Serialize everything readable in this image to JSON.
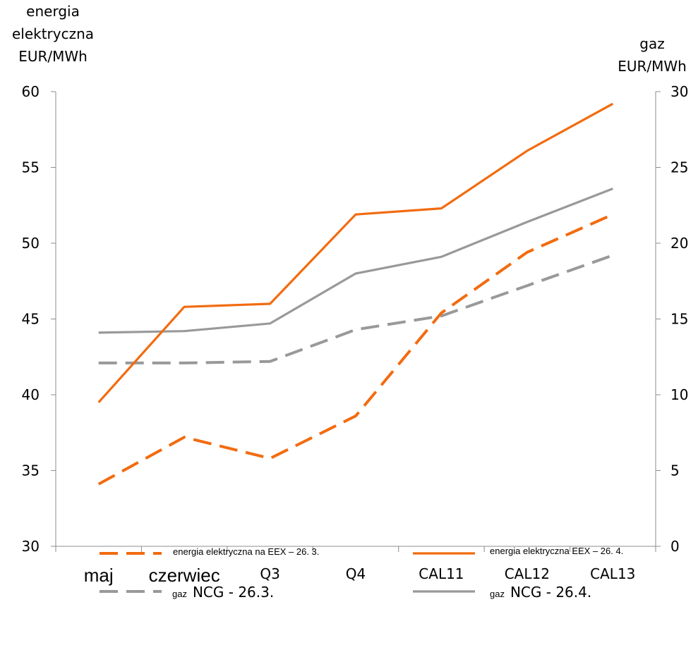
{
  "chart_data": {
    "type": "line",
    "left_axis": {
      "title_lines": [
        "energia",
        "elektryczna",
        "EUR/MWh"
      ],
      "range": [
        30,
        60
      ],
      "ticks": [
        "30",
        "35",
        "40",
        "45",
        "50",
        "55",
        "60"
      ]
    },
    "right_axis": {
      "title_lines": [
        "gaz",
        "EUR/MWh"
      ],
      "range": [
        0,
        30
      ],
      "ticks": [
        "0",
        "5",
        "10",
        "15",
        "20",
        "25",
        "30"
      ]
    },
    "categories": [
      "maj",
      "czerwiec",
      "Q3",
      "Q4",
      "CAL11",
      "CAL12",
      "CAL13"
    ],
    "series": [
      {
        "name": "energia elektryczna na EEX – 26. 3.",
        "axis": "left",
        "color": "#F26B0F",
        "dash": true,
        "values": [
          34.1,
          37.2,
          35.8,
          38.6,
          45.4,
          49.4,
          51.9
        ]
      },
      {
        "name": "energia elektryczna EEX – 26. 4.",
        "axis": "left",
        "color": "#F26B0F",
        "dash": false,
        "values": [
          39.5,
          45.8,
          46.0,
          51.9,
          52.3,
          56.1,
          59.2
        ]
      },
      {
        "name": "NCG - 26.3.",
        "axis": "right",
        "color": "#999999",
        "dash": true,
        "values": [
          12.1,
          12.1,
          12.2,
          14.3,
          15.2,
          17.2,
          19.2
        ]
      },
      {
        "name": "NCG - 26.4.",
        "axis": "right",
        "color": "#999999",
        "dash": false,
        "values": [
          14.1,
          14.2,
          14.7,
          18.0,
          19.1,
          21.4,
          23.6
        ]
      }
    ],
    "legend": {
      "gaz_label": "gaz"
    }
  }
}
